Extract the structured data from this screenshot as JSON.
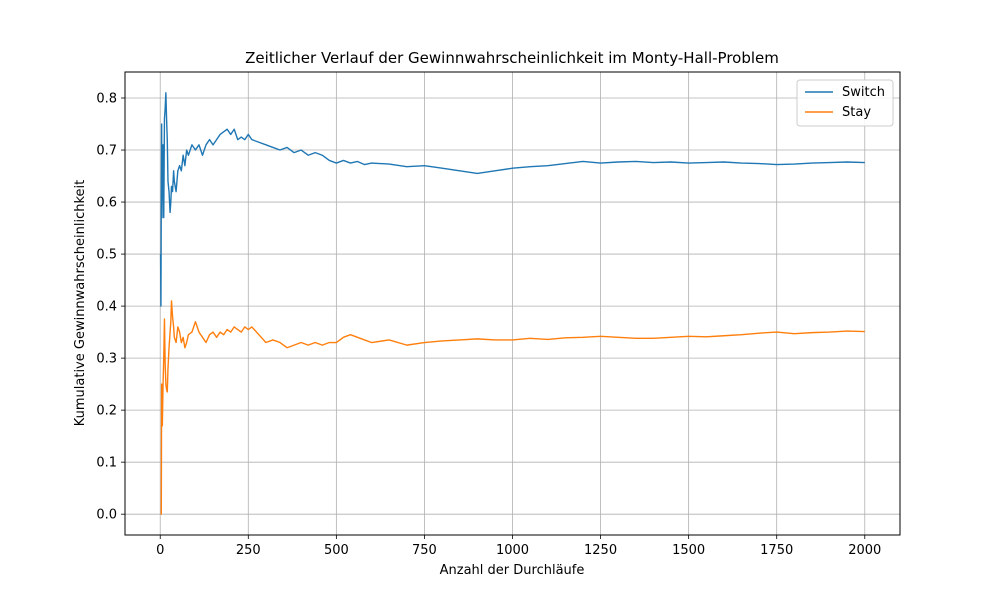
{
  "chart_data": {
    "type": "line",
    "title": "Zeitlicher Verlauf der Gewinnwahrscheinlichkeit im Monty-Hall-Problem",
    "xlabel": "Anzahl der Durchläufe",
    "ylabel": "Kumulative Gewinnwahrscheinlichkeit",
    "xlim": [
      -100,
      2100
    ],
    "ylim": [
      -0.04,
      0.85
    ],
    "xticks": [
      0,
      250,
      500,
      750,
      1000,
      1250,
      1500,
      1750,
      2000
    ],
    "xtick_labels": [
      "0",
      "250",
      "500",
      "750",
      "1000",
      "1250",
      "1500",
      "1750",
      "2000"
    ],
    "yticks": [
      0.0,
      0.1,
      0.2,
      0.3,
      0.4,
      0.5,
      0.6,
      0.7,
      0.8
    ],
    "ytick_labels": [
      "0.0",
      "0.1",
      "0.2",
      "0.3",
      "0.4",
      "0.5",
      "0.6",
      "0.7",
      "0.8"
    ],
    "grid": true,
    "legend_position": "top-right",
    "series": [
      {
        "name": "Switch",
        "color": "#1f77b4",
        "x": [
          1,
          2,
          3,
          4,
          5,
          6,
          8,
          10,
          12,
          14,
          16,
          18,
          20,
          22,
          25,
          28,
          30,
          32,
          35,
          38,
          40,
          45,
          50,
          55,
          60,
          65,
          70,
          75,
          80,
          90,
          100,
          110,
          120,
          130,
          140,
          150,
          160,
          170,
          180,
          190,
          200,
          210,
          220,
          230,
          240,
          250,
          260,
          280,
          300,
          320,
          340,
          360,
          380,
          400,
          420,
          440,
          460,
          480,
          500,
          520,
          540,
          560,
          580,
          600,
          650,
          700,
          750,
          800,
          850,
          900,
          950,
          1000,
          1050,
          1100,
          1150,
          1200,
          1250,
          1300,
          1350,
          1400,
          1450,
          1500,
          1550,
          1600,
          1650,
          1700,
          1750,
          1800,
          1850,
          1900,
          1950,
          2000
        ],
        "y": [
          0.5,
          0.4,
          0.6,
          0.75,
          0.57,
          0.66,
          0.71,
          0.57,
          0.76,
          0.78,
          0.81,
          0.76,
          0.72,
          0.64,
          0.62,
          0.58,
          0.6,
          0.63,
          0.62,
          0.66,
          0.64,
          0.62,
          0.66,
          0.67,
          0.66,
          0.69,
          0.67,
          0.7,
          0.69,
          0.71,
          0.7,
          0.71,
          0.69,
          0.71,
          0.72,
          0.71,
          0.72,
          0.73,
          0.735,
          0.74,
          0.73,
          0.74,
          0.72,
          0.725,
          0.72,
          0.73,
          0.72,
          0.715,
          0.71,
          0.705,
          0.7,
          0.705,
          0.695,
          0.7,
          0.69,
          0.695,
          0.69,
          0.68,
          0.675,
          0.68,
          0.675,
          0.678,
          0.672,
          0.675,
          0.673,
          0.668,
          0.67,
          0.665,
          0.66,
          0.655,
          0.66,
          0.665,
          0.668,
          0.67,
          0.674,
          0.678,
          0.675,
          0.677,
          0.678,
          0.676,
          0.677,
          0.675,
          0.676,
          0.677,
          0.675,
          0.674,
          0.672,
          0.673,
          0.675,
          0.676,
          0.677,
          0.676
        ]
      },
      {
        "name": "Stay",
        "color": "#ff7f0e",
        "x": [
          1,
          2,
          3,
          4,
          5,
          6,
          8,
          10,
          12,
          14,
          16,
          18,
          20,
          22,
          25,
          28,
          30,
          32,
          35,
          38,
          40,
          45,
          50,
          55,
          60,
          65,
          70,
          75,
          80,
          90,
          100,
          110,
          120,
          130,
          140,
          150,
          160,
          170,
          180,
          190,
          200,
          210,
          220,
          230,
          240,
          250,
          260,
          280,
          300,
          320,
          340,
          360,
          380,
          400,
          420,
          440,
          460,
          480,
          500,
          520,
          540,
          560,
          580,
          600,
          650,
          700,
          750,
          800,
          850,
          900,
          950,
          1000,
          1050,
          1100,
          1150,
          1200,
          1250,
          1300,
          1350,
          1400,
          1450,
          1500,
          1550,
          1600,
          1650,
          1700,
          1750,
          1800,
          1850,
          1900,
          1950,
          2000
        ],
        "y": [
          0.0,
          0.0,
          0.0,
          0.25,
          0.2,
          0.17,
          0.25,
          0.3,
          0.375,
          0.29,
          0.25,
          0.24,
          0.235,
          0.28,
          0.32,
          0.35,
          0.37,
          0.41,
          0.38,
          0.36,
          0.34,
          0.33,
          0.36,
          0.35,
          0.33,
          0.34,
          0.32,
          0.33,
          0.345,
          0.35,
          0.37,
          0.35,
          0.34,
          0.33,
          0.345,
          0.35,
          0.34,
          0.35,
          0.345,
          0.355,
          0.35,
          0.36,
          0.355,
          0.35,
          0.36,
          0.355,
          0.36,
          0.345,
          0.33,
          0.335,
          0.33,
          0.32,
          0.325,
          0.33,
          0.325,
          0.33,
          0.325,
          0.33,
          0.33,
          0.34,
          0.345,
          0.34,
          0.335,
          0.33,
          0.335,
          0.325,
          0.33,
          0.333,
          0.335,
          0.337,
          0.335,
          0.335,
          0.338,
          0.336,
          0.339,
          0.34,
          0.342,
          0.34,
          0.338,
          0.338,
          0.34,
          0.342,
          0.341,
          0.343,
          0.345,
          0.348,
          0.35,
          0.347,
          0.349,
          0.35,
          0.352,
          0.351
        ]
      }
    ]
  }
}
